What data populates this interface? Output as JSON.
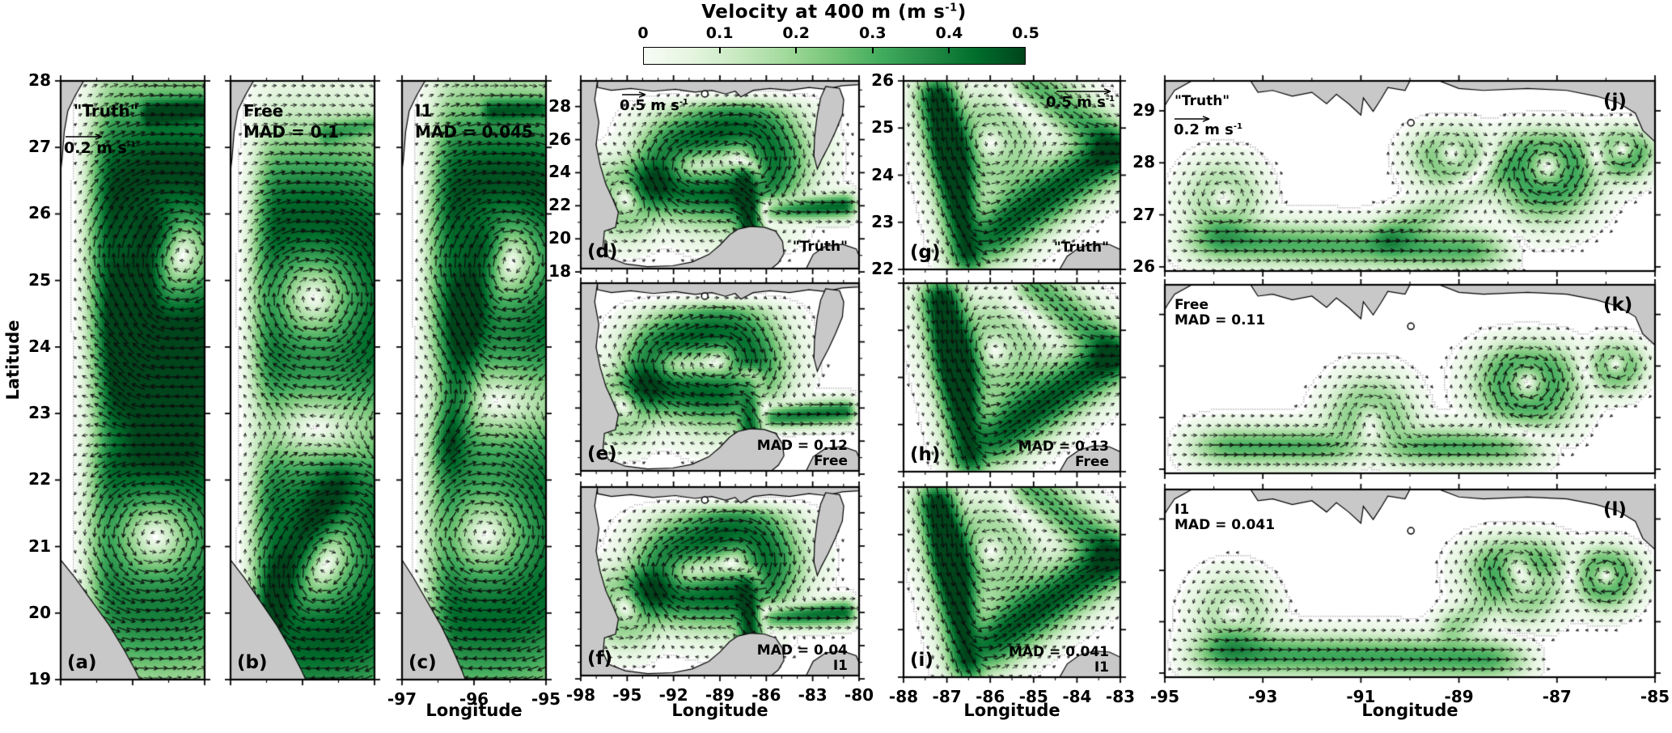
{
  "colorbar": {
    "title_pre": "Velocity at 400 m (m s",
    "title_sup": "-1",
    "title_post": ")",
    "ticks": [
      "0",
      "0.1",
      "0.2",
      "0.3",
      "0.4",
      "0.5"
    ],
    "gradient": [
      "#f7fcf5",
      "#e5f5e0",
      "#c7e9c0",
      "#a1d99b",
      "#74c476",
      "#41ab5d",
      "#238b45",
      "#006d2c",
      "#00441b"
    ]
  },
  "axes": {
    "xlabel": "Longitude",
    "ylabel": "Latitude"
  },
  "colors": {
    "land": "#c8c8c8",
    "coastline": "#000000",
    "contour": "#bdbdbd",
    "arrow": "#0d0d0d",
    "border": "#000000",
    "background": "#ffffff"
  },
  "panels": [
    {
      "id": "a",
      "letter": "(a)",
      "letter_pos": "bl",
      "xlim": [
        -97,
        -95
      ],
      "ylim": [
        28,
        19
      ],
      "xticks": [
        -97,
        -96,
        -95
      ],
      "yticks": [
        28,
        27,
        26,
        25,
        24,
        23,
        22,
        21,
        20,
        19
      ],
      "xminor": 0.5,
      "yminor": null,
      "show_xtick_labels": false,
      "show_ytick_labels": true,
      "show_xlabel": false,
      "notes": [
        {
          "lines": [
            "\"Truth\""
          ],
          "pos": "tl"
        }
      ],
      "scale_arrow": {
        "value": "0.2",
        "unit": "m s",
        "sup": "-1",
        "pos": "a"
      },
      "marker": false
    },
    {
      "id": "b",
      "letter": "(b)",
      "letter_pos": "bl",
      "xlim": [
        -97,
        -95
      ],
      "ylim": [
        28,
        19
      ],
      "xticks": [
        -97,
        -96,
        -95
      ],
      "yticks": [
        28,
        27,
        26,
        25,
        24,
        23,
        22,
        21,
        20,
        19
      ],
      "xminor": 0.5,
      "yminor": null,
      "show_xtick_labels": false,
      "show_ytick_labels": false,
      "show_xlabel": false,
      "notes": [
        {
          "lines": [
            "Free",
            "MAD = 0.1"
          ],
          "pos": "tl"
        }
      ],
      "marker": false
    },
    {
      "id": "c",
      "letter": "(c)",
      "letter_pos": "bl",
      "xlim": [
        -97,
        -95
      ],
      "ylim": [
        28,
        19
      ],
      "xticks": [
        -97,
        -96,
        -95
      ],
      "yticks": [
        28,
        27,
        26,
        25,
        24,
        23,
        22,
        21,
        20,
        19
      ],
      "xminor": 0.5,
      "yminor": null,
      "show_xtick_labels": true,
      "show_ytick_labels": false,
      "show_xlabel": true,
      "notes": [
        {
          "lines": [
            "I1",
            "MAD = 0.045"
          ],
          "pos": "tl"
        }
      ],
      "marker": false
    },
    {
      "id": "d",
      "letter": "(d)",
      "letter_pos": "bl",
      "xlim": [
        -98,
        -80
      ],
      "ylim": [
        29.55,
        18.2
      ],
      "xticks": [
        -98,
        -95,
        -92,
        -89,
        -86,
        -83,
        -80
      ],
      "yticks": [
        28,
        26,
        24,
        22,
        20,
        18
      ],
      "xminor": 1,
      "yminor": 1,
      "show_xtick_labels": false,
      "show_ytick_labels": true,
      "show_xlabel": false,
      "notes": [
        {
          "lines": [
            "\"Truth\""
          ],
          "pos": "br"
        }
      ],
      "scale_arrow": {
        "value": "0.5",
        "unit": "m s",
        "sup": "-1",
        "pos": "d"
      },
      "marker": true
    },
    {
      "id": "e",
      "letter": "(e)",
      "letter_pos": "bl",
      "xlim": [
        -98,
        -80
      ],
      "ylim": [
        29.55,
        18.2
      ],
      "xticks": [
        -98,
        -95,
        -92,
        -89,
        -86,
        -83,
        -80
      ],
      "yticks": [
        28,
        26,
        24,
        22,
        20,
        18
      ],
      "xminor": 1,
      "yminor": 1,
      "show_xtick_labels": false,
      "show_ytick_labels": false,
      "show_xlabel": false,
      "notes": [
        {
          "lines": [
            "MAD = 0.12",
            "Free"
          ],
          "pos": "br"
        }
      ],
      "marker": true
    },
    {
      "id": "f",
      "letter": "(f)",
      "letter_pos": "bl",
      "xlim": [
        -98,
        -80
      ],
      "ylim": [
        29.55,
        18.2
      ],
      "xticks": [
        -98,
        -95,
        -92,
        -89,
        -86,
        -83,
        -80
      ],
      "yticks": [
        28,
        26,
        24,
        22,
        20,
        18
      ],
      "xminor": 1,
      "yminor": 1,
      "show_xtick_labels": true,
      "show_ytick_labels": false,
      "show_xlabel": true,
      "notes": [
        {
          "lines": [
            "MAD = 0.04",
            "I1"
          ],
          "pos": "br"
        }
      ],
      "marker": true
    },
    {
      "id": "g",
      "letter": "(g)",
      "letter_pos": "bl",
      "xlim": [
        -88,
        -83
      ],
      "ylim": [
        26,
        22
      ],
      "xticks": [
        -88,
        -87,
        -86,
        -85,
        -84,
        -83
      ],
      "yticks": [
        26,
        25,
        24,
        23,
        22
      ],
      "xminor": 0.5,
      "yminor": null,
      "show_xtick_labels": false,
      "show_ytick_labels": true,
      "show_xlabel": false,
      "notes": [
        {
          "lines": [
            "\"Truth\""
          ],
          "pos": "br"
        }
      ],
      "scale_arrow": {
        "value": "0.5",
        "unit": "m s",
        "sup": "-1",
        "pos": "g"
      },
      "marker": false
    },
    {
      "id": "h",
      "letter": "(h)",
      "letter_pos": "bl",
      "xlim": [
        -88,
        -83
      ],
      "ylim": [
        26,
        22
      ],
      "xticks": [
        -88,
        -87,
        -86,
        -85,
        -84,
        -83
      ],
      "yticks": [
        26,
        25,
        24,
        23,
        22
      ],
      "xminor": 0.5,
      "yminor": null,
      "show_xtick_labels": false,
      "show_ytick_labels": false,
      "show_xlabel": false,
      "notes": [
        {
          "lines": [
            "MAD = 0.13",
            "Free"
          ],
          "pos": "br"
        }
      ],
      "marker": false
    },
    {
      "id": "i",
      "letter": "(i)",
      "letter_pos": "bl",
      "xlim": [
        -88,
        -83
      ],
      "ylim": [
        26,
        22
      ],
      "xticks": [
        -88,
        -87,
        -86,
        -85,
        -84,
        -83
      ],
      "yticks": [
        26,
        25,
        24,
        23,
        22
      ],
      "xminor": 0.5,
      "yminor": null,
      "show_xtick_labels": true,
      "show_ytick_labels": false,
      "show_xlabel": true,
      "notes": [
        {
          "lines": [
            "MAD = 0.041",
            "I1"
          ],
          "pos": "br"
        }
      ],
      "marker": false
    },
    {
      "id": "j",
      "letter": "(j)",
      "letter_pos": "tr",
      "xlim": [
        -95,
        -85
      ],
      "ylim": [
        29.575,
        25.92
      ],
      "xticks": [
        -95,
        -93,
        -91,
        -89,
        -87,
        -85
      ],
      "yticks": [
        29,
        28,
        27,
        26
      ],
      "xminor": 1,
      "yminor": null,
      "show_xtick_labels": false,
      "show_ytick_labels": true,
      "show_xlabel": false,
      "notes": [
        {
          "lines": [
            "\"Truth\""
          ],
          "pos": "tl"
        }
      ],
      "scale_arrow": {
        "value": "0.2",
        "unit": "m s",
        "sup": "-1",
        "pos": "j"
      },
      "marker": true
    },
    {
      "id": "k",
      "letter": "(k)",
      "letter_pos": "tr",
      "xlim": [
        -95,
        -85
      ],
      "ylim": [
        29.575,
        25.92
      ],
      "xticks": [
        -95,
        -93,
        -91,
        -89,
        -87,
        -85
      ],
      "yticks": [
        29,
        28,
        27,
        26
      ],
      "xminor": 1,
      "yminor": null,
      "show_xtick_labels": false,
      "show_ytick_labels": false,
      "show_xlabel": false,
      "notes": [
        {
          "lines": [
            "Free",
            "MAD = 0.11"
          ],
          "pos": "tl"
        }
      ],
      "marker": true
    },
    {
      "id": "l",
      "letter": "(l)",
      "letter_pos": "tr",
      "xlim": [
        -95,
        -85
      ],
      "ylim": [
        29.575,
        25.92
      ],
      "xticks": [
        -95,
        -93,
        -91,
        -89,
        -87,
        -85
      ],
      "yticks": [
        29,
        28,
        27,
        26
      ],
      "xminor": 1,
      "yminor": null,
      "show_xtick_labels": true,
      "show_ytick_labels": false,
      "show_xlabel": true,
      "notes": [
        {
          "lines": [
            "I1",
            "MAD = 0.041"
          ],
          "pos": "tl"
        }
      ],
      "marker": true
    }
  ],
  "chart_data": {
    "type": "heatmap",
    "title": "Velocity at 400 m (m s^-1)",
    "subtitle": "Quiver/shading maps of ocean velocity magnitude at 400 m depth",
    "colorbar": {
      "label": "Velocity at 400 m (m s^-1)",
      "range": [
        0,
        0.5
      ],
      "ticks": [
        0,
        0.1,
        0.2,
        0.3,
        0.4,
        0.5
      ],
      "colormap": "Greens",
      "position": "top"
    },
    "xlabel": "Longitude",
    "ylabel": "Latitude",
    "panel_grid": {
      "columns": 4,
      "column_xlims": [
        [
          -97,
          -95
        ],
        [
          -98,
          -80
        ],
        [
          -88,
          -83
        ],
        [
          -95,
          -85
        ]
      ],
      "column_ylims": [
        [
          19,
          28
        ],
        [
          18.2,
          29.55
        ],
        [
          22,
          26
        ],
        [
          25.92,
          29.575
        ]
      ]
    },
    "panels": [
      {
        "id": "a",
        "experiment": "\"Truth\"",
        "mad": null,
        "scale_arrow_m_per_s": 0.2
      },
      {
        "id": "b",
        "experiment": "Free",
        "mad": 0.1
      },
      {
        "id": "c",
        "experiment": "I1",
        "mad": 0.045
      },
      {
        "id": "d",
        "experiment": "\"Truth\"",
        "mad": null,
        "scale_arrow_m_per_s": 0.5
      },
      {
        "id": "e",
        "experiment": "Free",
        "mad": 0.12
      },
      {
        "id": "f",
        "experiment": "I1",
        "mad": 0.04
      },
      {
        "id": "g",
        "experiment": "\"Truth\"",
        "mad": null,
        "scale_arrow_m_per_s": 0.5
      },
      {
        "id": "h",
        "experiment": "Free",
        "mad": 0.13
      },
      {
        "id": "i",
        "experiment": "I1",
        "mad": 0.041
      },
      {
        "id": "j",
        "experiment": "\"Truth\"",
        "mad": null,
        "scale_arrow_m_per_s": 0.2
      },
      {
        "id": "k",
        "experiment": "Free",
        "mad": 0.11
      },
      {
        "id": "l",
        "experiment": "I1",
        "mad": 0.041
      }
    ],
    "mooring_marker_lonlat": [
      -89.98,
      28.77
    ]
  }
}
